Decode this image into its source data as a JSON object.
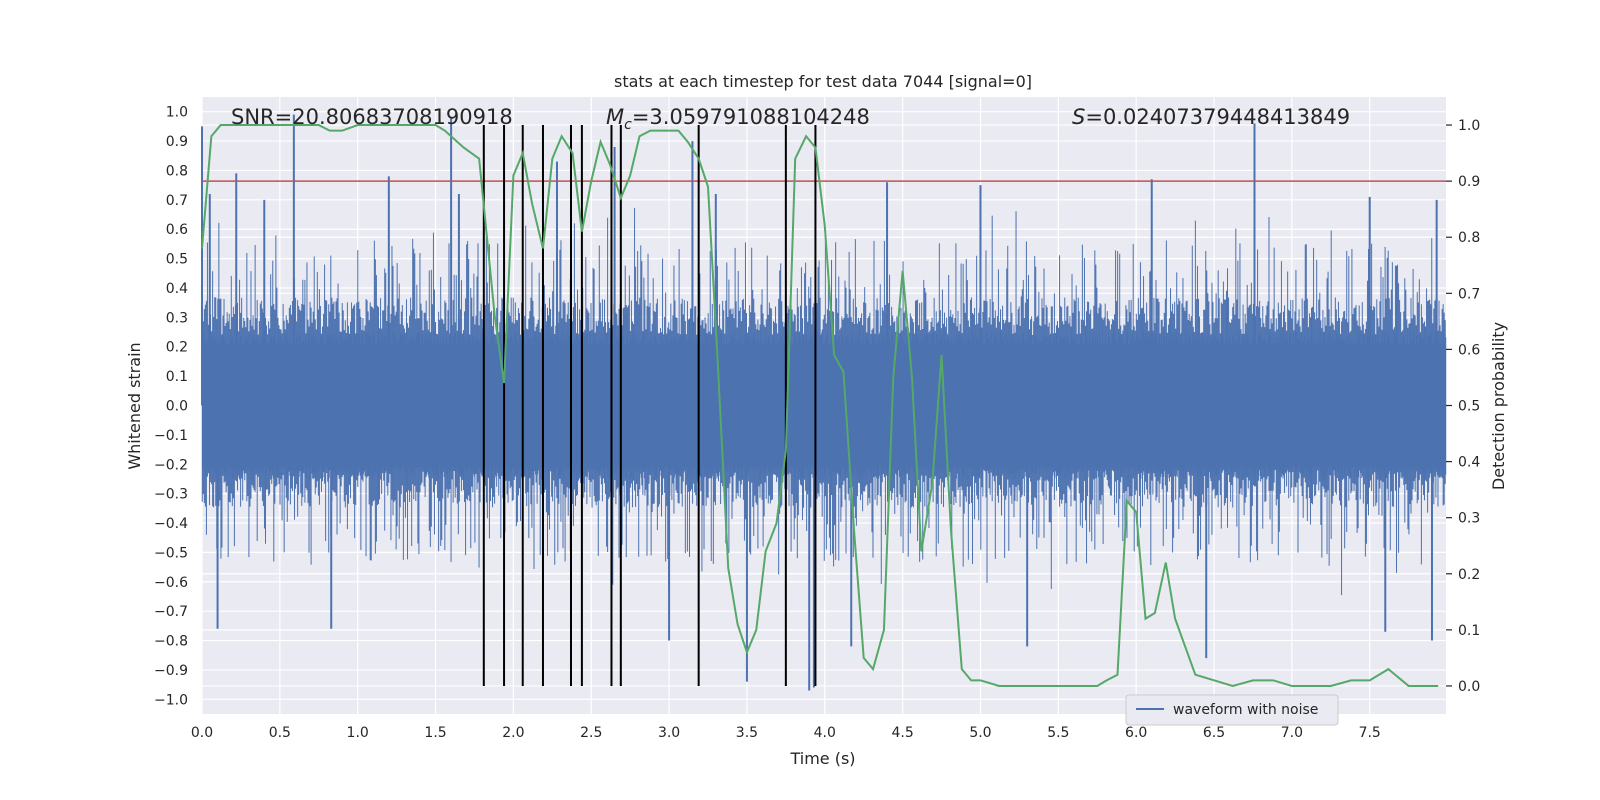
{
  "chart_data": {
    "type": "line",
    "title": "stats at each timestep for test data 7044 [signal=0]",
    "xlabel": "Time (s)",
    "ylabel_left": "Whitened strain",
    "ylabel_right": "Detection probability",
    "xlim": [
      0,
      7.99
    ],
    "ylim_left": [
      -1.05,
      1.05
    ],
    "ylim_right": [
      -0.05,
      1.05
    ],
    "x_ticks": [
      "0.0",
      "0.5",
      "1.0",
      "1.5",
      "2.0",
      "2.5",
      "3.0",
      "3.5",
      "4.0",
      "4.5",
      "5.0",
      "5.5",
      "6.0",
      "6.5",
      "7.0",
      "7.5"
    ],
    "y_ticks_left": [
      "-1.0",
      "-0.9",
      "-0.8",
      "-0.7",
      "-0.6",
      "-0.5",
      "-0.4",
      "-0.3",
      "-0.2",
      "-0.1",
      "0.0",
      "0.1",
      "0.2",
      "0.3",
      "0.4",
      "0.5",
      "0.6",
      "0.7",
      "0.8",
      "0.9",
      "1.0"
    ],
    "y_ticks_right": [
      "0.0",
      "0.1",
      "0.2",
      "0.3",
      "0.4",
      "0.5",
      "0.6",
      "0.7",
      "0.8",
      "0.9",
      "1.0"
    ],
    "grid": true,
    "annotations": {
      "snr": "SNR=20.80683708190918",
      "mc_symbol": "M",
      "mc_sub": "c",
      "mc_value": "=3.059791088104248",
      "s_symbol": "S",
      "s_value": "=0.02407379448413849"
    },
    "threshold": {
      "value": 0.9,
      "axis": "right",
      "color": "#c44e52"
    },
    "vertical_lines": [
      1.81,
      1.94,
      2.06,
      2.19,
      2.37,
      2.44,
      2.63,
      2.69,
      3.19,
      3.75,
      3.94
    ],
    "vertical_line_range": [
      0.0,
      1.0
    ],
    "waveform": {
      "name": "waveform with noise",
      "color": "#4c72b0",
      "peaks": [
        {
          "x": 0.59,
          "y": 0.99
        },
        {
          "x": 1.6,
          "y": 0.98
        },
        {
          "x": 6.76,
          "y": 0.96
        },
        {
          "x": 0.0,
          "y": 0.95
        },
        {
          "x": 3.15,
          "y": 0.9
        },
        {
          "x": 2.65,
          "y": 0.88
        },
        {
          "x": 0.22,
          "y": 0.79
        },
        {
          "x": 1.2,
          "y": 0.78
        },
        {
          "x": 2.28,
          "y": 0.83
        },
        {
          "x": 6.1,
          "y": 0.77
        },
        {
          "x": 4.4,
          "y": 0.76
        },
        {
          "x": 5.0,
          "y": 0.75
        },
        {
          "x": 3.3,
          "y": 0.72
        },
        {
          "x": 0.05,
          "y": 0.72
        },
        {
          "x": 1.65,
          "y": 0.72
        },
        {
          "x": 0.4,
          "y": 0.7
        },
        {
          "x": 7.5,
          "y": 0.71
        },
        {
          "x": 7.93,
          "y": 0.7
        }
      ],
      "troughs": [
        {
          "x": 3.5,
          "y": -0.94
        },
        {
          "x": 3.9,
          "y": -0.97
        },
        {
          "x": 3.93,
          "y": -0.96
        },
        {
          "x": 2.37,
          "y": -0.86
        },
        {
          "x": 4.17,
          "y": -0.82
        },
        {
          "x": 3.0,
          "y": -0.8
        },
        {
          "x": 5.3,
          "y": -0.82
        },
        {
          "x": 6.45,
          "y": -0.86
        },
        {
          "x": 0.1,
          "y": -0.76
        },
        {
          "x": 0.83,
          "y": -0.76
        },
        {
          "x": 7.9,
          "y": -0.8
        },
        {
          "x": 7.6,
          "y": -0.77
        }
      ]
    },
    "detection_probability": {
      "color": "#55a868",
      "x": [
        0.0,
        0.06,
        0.12,
        0.25,
        0.5,
        0.75,
        0.82,
        0.9,
        1.0,
        1.25,
        1.5,
        1.56,
        1.68,
        1.78,
        1.88,
        1.94,
        2.0,
        2.06,
        2.12,
        2.19,
        2.25,
        2.31,
        2.38,
        2.44,
        2.5,
        2.56,
        2.62,
        2.69,
        2.75,
        2.81,
        2.88,
        2.94,
        3.0,
        3.06,
        3.12,
        3.19,
        3.25,
        3.31,
        3.38,
        3.44,
        3.5,
        3.56,
        3.62,
        3.69,
        3.75,
        3.81,
        3.88,
        3.94,
        4.0,
        4.06,
        4.12,
        4.19,
        4.25,
        4.31,
        4.38,
        4.44,
        4.5,
        4.56,
        4.62,
        4.69,
        4.75,
        4.81,
        4.88,
        4.94,
        5.0,
        5.12,
        5.25,
        5.5,
        5.75,
        5.81,
        5.88,
        5.94,
        6.0,
        6.06,
        6.12,
        6.19,
        6.25,
        6.38,
        6.5,
        6.62,
        6.75,
        6.88,
        7.0,
        7.12,
        7.25,
        7.38,
        7.5,
        7.62,
        7.75,
        7.88,
        7.94
      ],
      "y": [
        0.78,
        0.98,
        1.0,
        1.0,
        1.0,
        1.0,
        0.99,
        0.99,
        1.0,
        1.0,
        1.0,
        0.99,
        0.96,
        0.94,
        0.66,
        0.54,
        0.91,
        0.95,
        0.86,
        0.78,
        0.94,
        0.98,
        0.95,
        0.81,
        0.9,
        0.97,
        0.93,
        0.87,
        0.91,
        0.98,
        0.99,
        0.99,
        0.99,
        0.99,
        0.97,
        0.94,
        0.89,
        0.59,
        0.21,
        0.11,
        0.06,
        0.1,
        0.24,
        0.29,
        0.42,
        0.94,
        0.98,
        0.96,
        0.82,
        0.59,
        0.56,
        0.27,
        0.05,
        0.03,
        0.1,
        0.55,
        0.74,
        0.55,
        0.24,
        0.36,
        0.59,
        0.28,
        0.03,
        0.01,
        0.01,
        0.0,
        0.0,
        0.0,
        0.0,
        0.01,
        0.02,
        0.33,
        0.31,
        0.12,
        0.13,
        0.22,
        0.12,
        0.02,
        0.01,
        0.0,
        0.01,
        0.01,
        0.0,
        0.0,
        0.0,
        0.01,
        0.01,
        0.03,
        0.0,
        0.0,
        0.0
      ]
    },
    "legend": {
      "placement": "lower-center",
      "entries": [
        "waveform with noise"
      ]
    }
  }
}
